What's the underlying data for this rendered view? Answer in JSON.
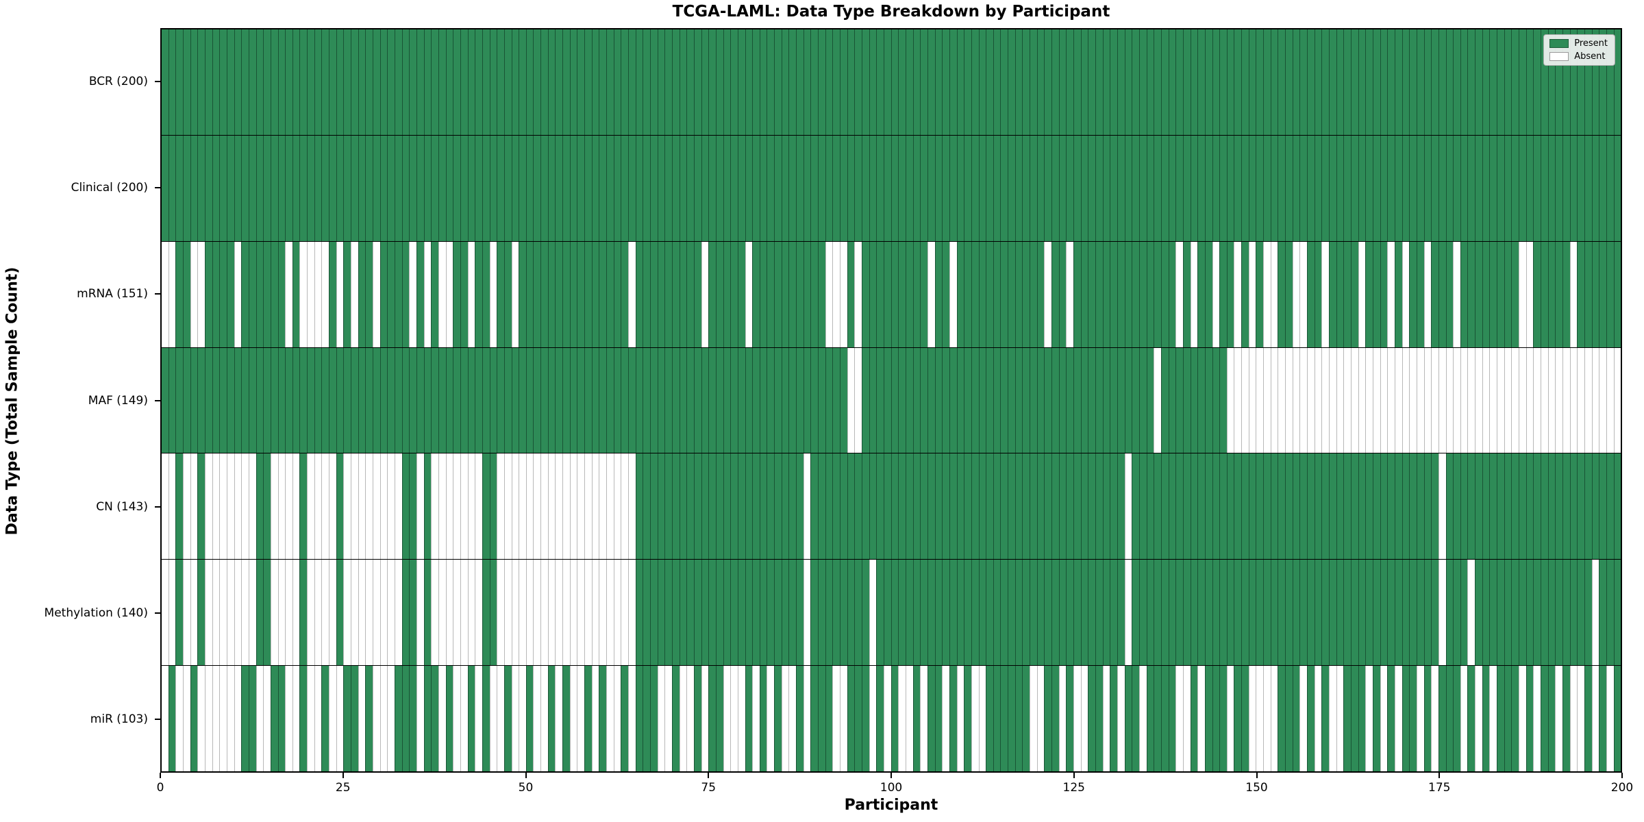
{
  "title": "TCGA-LAML: Data Type Breakdown by Participant",
  "colors": {
    "present": "#2e8b57",
    "absent": "#ffffff",
    "grid_on_present": "rgba(10,40,25,0.55)",
    "grid_on_absent": "rgba(0,0,0,0.28)",
    "plot_border": "#000000",
    "legend_bg": "#f2f2f2"
  },
  "legend": {
    "present_label": "Present",
    "absent_label": "Absent"
  },
  "chart_data": {
    "type": "heatmap",
    "title": "TCGA-LAML: Data Type Breakdown by Participant",
    "xlabel": "Participant",
    "ylabel": "Data Type (Total Sample Count)",
    "x_range": [
      0,
      200
    ],
    "x_ticks": [
      0,
      25,
      50,
      75,
      100,
      125,
      150,
      175,
      200
    ],
    "n_participants": 200,
    "grid": true,
    "legend_position": "upper right",
    "legend_entries": [
      "Present",
      "Absent"
    ],
    "cell_encoding": "pattern strings: one char per participant (index 0-199), 1 = Present (green), 0 = Absent (white)",
    "rows": [
      {
        "label": "BCR (200)",
        "name": "BCR",
        "total_samples": 200,
        "pattern": "11111111111111111111111111111111111111111111111111111111111111111111111111111111111111111111111111111111111111111111111111111111111111111111111111111111111111111111111111111111111111111111111111111111"
      },
      {
        "label": "Clinical (200)",
        "name": "Clinical",
        "total_samples": 200,
        "pattern": "11111111111111111111111111111111111111111111111111111111111111111111111111111111111111111111111111111111111111111111111111111111111111111111111111111111111111111111111111111111111111111111111111111111"
      },
      {
        "label": "mRNA (151)",
        "name": "mRNA",
        "total_samples": 151,
        "pattern": "00110011110111111010000101011011110101001101101101111111111111110111111111011111011111111110001011111111101101111111111110110111111111111110101101101010011001101111011101011011101111111100111110111111"
      },
      {
        "label": "MAF (149)",
        "name": "MAF",
        "total_samples": 149,
        "pattern": "11111111111111111111111111111111111111111111111111111111111111111111111111111111111111111111110011111111111111111111111111111111111111110111111111000000000000000000000000000000000000000000000000000000"
      },
      {
        "label": "CN (143)",
        "name": "CN",
        "total_samples": 143,
        "pattern": "00100100000001100001000010000000011010000000110000000000000000000111111111111111111111110111111111111111111111111111111111111111111101111111111111111111111111111111111111111110111111111111111111111111"
      },
      {
        "label": "Methylation (140)",
        "name": "Methylation",
        "total_samples": 140,
        "pattern": "00100100000001100001000010000000011010000000110000000000000000000111111111111111111111110111111110111111111111111111111111111111111101111111111111111111111111111111111111111110111011111111111111110111111111"
      },
      {
        "label": "miR (103)",
        "name": "miR",
        "total_samples": 103,
        "pattern": "01001000000110011001001001101000111011010010100100100101001010010111001001011000101010010111001110101001011010100111111001101001101011011110010111011000011101010011101010110101110101011101011010010101"
      }
    ]
  }
}
